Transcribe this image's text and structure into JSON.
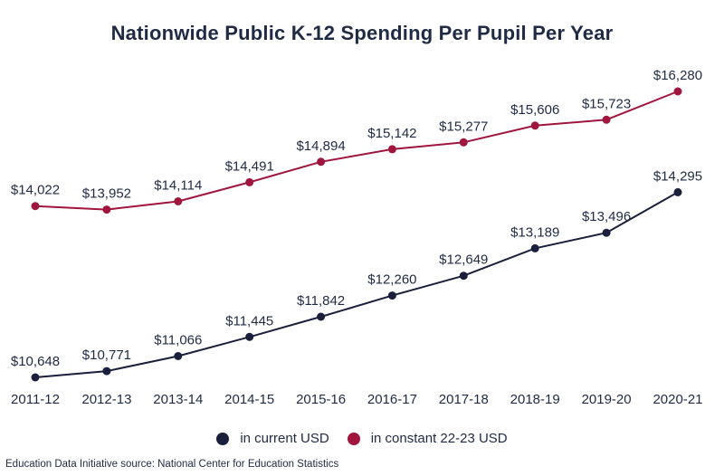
{
  "chart_data": {
    "type": "line",
    "title": "Nationwide Public K-12 Spending Per Pupil Per Year",
    "xlabel": "",
    "ylabel": "",
    "categories": [
      "2011-12",
      "2012-13",
      "2013-14",
      "2014-15",
      "2015-16",
      "2016-17",
      "2017-18",
      "2018-19",
      "2019-20",
      "2020-21"
    ],
    "ylim": [
      10300,
      16600
    ],
    "grid": false,
    "legend_position": "bottom-center",
    "series": [
      {
        "name": "in constant 22-23 USD",
        "color": "#a0153e",
        "values": [
          14022,
          13952,
          14114,
          14491,
          14894,
          15142,
          15277,
          15606,
          15723,
          16280
        ],
        "labels": [
          "$14,022",
          "$13,952",
          "$14,114",
          "$14,491",
          "$14,894",
          "$15,142",
          "$15,277",
          "$15,606",
          "$15,723",
          "$16,280"
        ]
      },
      {
        "name": "in current USD",
        "color": "#1a1f3c",
        "values": [
          10648,
          10771,
          11066,
          11445,
          11842,
          12260,
          12649,
          13189,
          13496,
          14295
        ],
        "labels": [
          "$10,648",
          "$10,771",
          "$11,066",
          "$11,445",
          "$11,842",
          "$12,260",
          "$12,649",
          "$13,189",
          "$13,496",
          "$14,295"
        ]
      }
    ],
    "legend": [
      {
        "label": "in current USD",
        "color": "#1a1f3c"
      },
      {
        "label": "in constant 22-23 USD",
        "color": "#a0153e"
      }
    ]
  },
  "source_note": "Education Data Initiative source: National Center for Education Statistics"
}
